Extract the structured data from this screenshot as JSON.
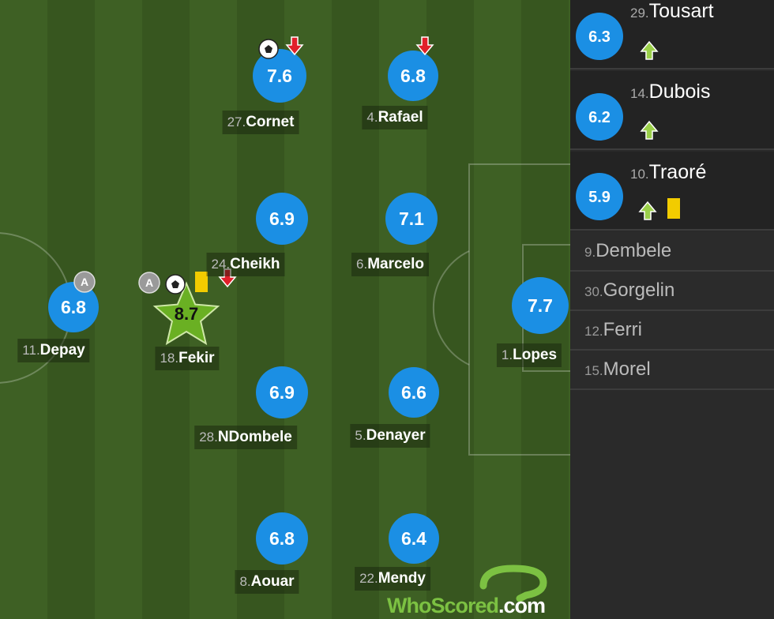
{
  "players": [
    {
      "shirt": "27.",
      "name": "Cornet",
      "rating": 7.6
    },
    {
      "shirt": "4.",
      "name": "Rafael",
      "rating": 6.8
    },
    {
      "shirt": "24.",
      "name": "Cheikh",
      "rating": 6.9
    },
    {
      "shirt": "6.",
      "name": "Marcelo",
      "rating": 7.1
    },
    {
      "shirt": "11.",
      "name": "Depay",
      "rating": 6.8
    },
    {
      "shirt": "18.",
      "name": "Fekir",
      "rating": 8.7
    },
    {
      "shirt": "28.",
      "name": "NDombele",
      "rating": 6.9
    },
    {
      "shirt": "5.",
      "name": "Denayer",
      "rating": 6.6
    },
    {
      "shirt": "1.",
      "name": "Lopes",
      "rating": 7.7
    },
    {
      "shirt": "8.",
      "name": "Aouar",
      "rating": 6.8
    },
    {
      "shirt": "22.",
      "name": "Mendy",
      "rating": 6.4
    }
  ],
  "substitutes": [
    {
      "shirt": "29.",
      "name": "Tousart",
      "rating": 6.3
    },
    {
      "shirt": "14.",
      "name": "Dubois",
      "rating": 6.2
    },
    {
      "shirt": "10.",
      "name": "Traoré",
      "rating": 5.9
    }
  ],
  "unused": [
    {
      "shirt": "9.",
      "name": "Dembele"
    },
    {
      "shirt": "30.",
      "name": "Gorgelin"
    },
    {
      "shirt": "12.",
      "name": "Ferri"
    },
    {
      "shirt": "15.",
      "name": "Morel"
    }
  ],
  "badges": {
    "assist": "A"
  },
  "watermark": {
    "brand": "WhoScored",
    "domain": ".com"
  }
}
